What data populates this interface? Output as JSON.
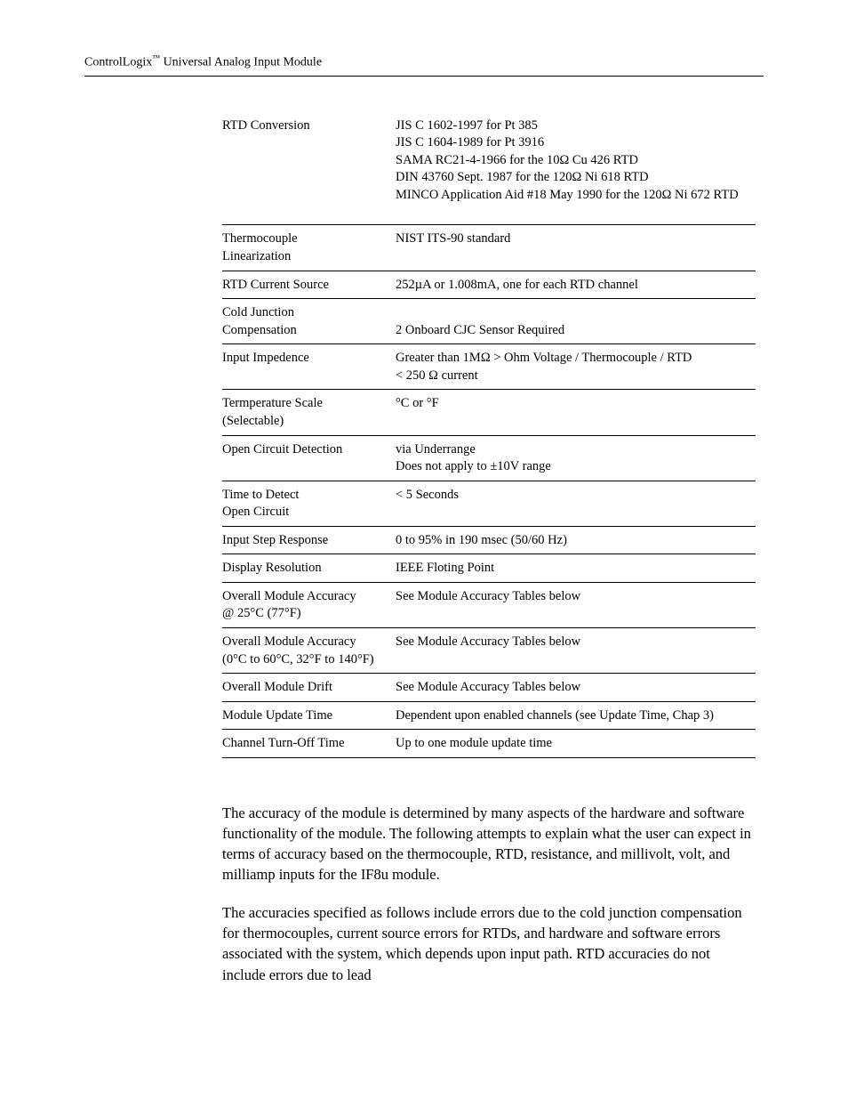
{
  "header": {
    "prefix": "ControlLogix",
    "tm": "™",
    "suffix": " Universal Analog Input Module"
  },
  "specs": {
    "rtd_conversion": {
      "label": "RTD Conversion",
      "l1": "JIS C 1602-1997 for Pt 385",
      "l2": "JIS C 1604-1989 for Pt 3916",
      "l3": "SAMA RC21-4-1966 for the 10Ω Cu 426 RTD",
      "l4": "DIN 43760 Sept. 1987 for the 120Ω  Ni 618 RTD",
      "l5": "MINCO Application Aid #18 May 1990 for the 120Ω Ni 672 RTD"
    },
    "tc_lin": {
      "label1": "Thermocouple",
      "label2": "Linearization",
      "value": "NIST ITS-90 standard"
    },
    "rtd_cs": {
      "label": "RTD Current Source",
      "value": "252µA or 1.008mA, one for each RTD channel"
    },
    "cjc": {
      "label1": "Cold Junction",
      "label2": "Compensation",
      "value": "2 Onboard CJC Sensor Required"
    },
    "imp": {
      "label": "Input Impedence",
      "l1": "Greater than 1MΩ > Ohm Voltage / Thermocouple / RTD",
      "l2": "< 250 Ω current"
    },
    "tscale": {
      "label1": "Termperature Scale",
      "label2": "(Selectable)",
      "value": "°C or °F"
    },
    "ocd": {
      "label": "Open Circuit Detection",
      "l1": "via Underrange",
      "l2": "Does not apply to ±10V range"
    },
    "ttd": {
      "label1": "Time to Detect",
      "label2": "Open Circuit",
      "value": "< 5 Seconds"
    },
    "isr": {
      "label": "Input Step Response",
      "value": "0 to 95% in 190 msec (50/60 Hz)"
    },
    "dr": {
      "label": "Display Resolution",
      "value": "IEEE Floting Point"
    },
    "oma25": {
      "label1": "Overall Module Accuracy",
      "label2": "@ 25°C (77°F)",
      "value": "See Module Accuracy Tables below"
    },
    "oma060": {
      "label1": "Overall Module Accuracy",
      "label2": "(0°C to 60°C, 32°F to 140°F)",
      "value": "See Module Accuracy Tables below"
    },
    "omd": {
      "label": "Overall Module Drift",
      "value": "See Module Accuracy Tables below"
    },
    "mut": {
      "label": "Module Update Time",
      "value": "Dependent upon enabled channels (see Update Time,  Chap 3)"
    },
    "ctot": {
      "label": "Channel Turn-Off Time",
      "value": "Up to one module update time"
    }
  },
  "prose": {
    "p1": "The accuracy of the module is determined by many aspects of the hardware and software functionality of the module.  The following attempts to explain what the user can expect in terms of accuracy based on the thermocouple, RTD, resistance, and millivolt, volt, and milliamp inputs for the IF8u module.",
    "p2": "The accuracies specified as follows include errors due to the cold junction compensation for thermocouples, current source errors for RTDs, and hardware and software errors associated with the system, which depends upon input path.  RTD accuracies do not include errors due to lead"
  }
}
